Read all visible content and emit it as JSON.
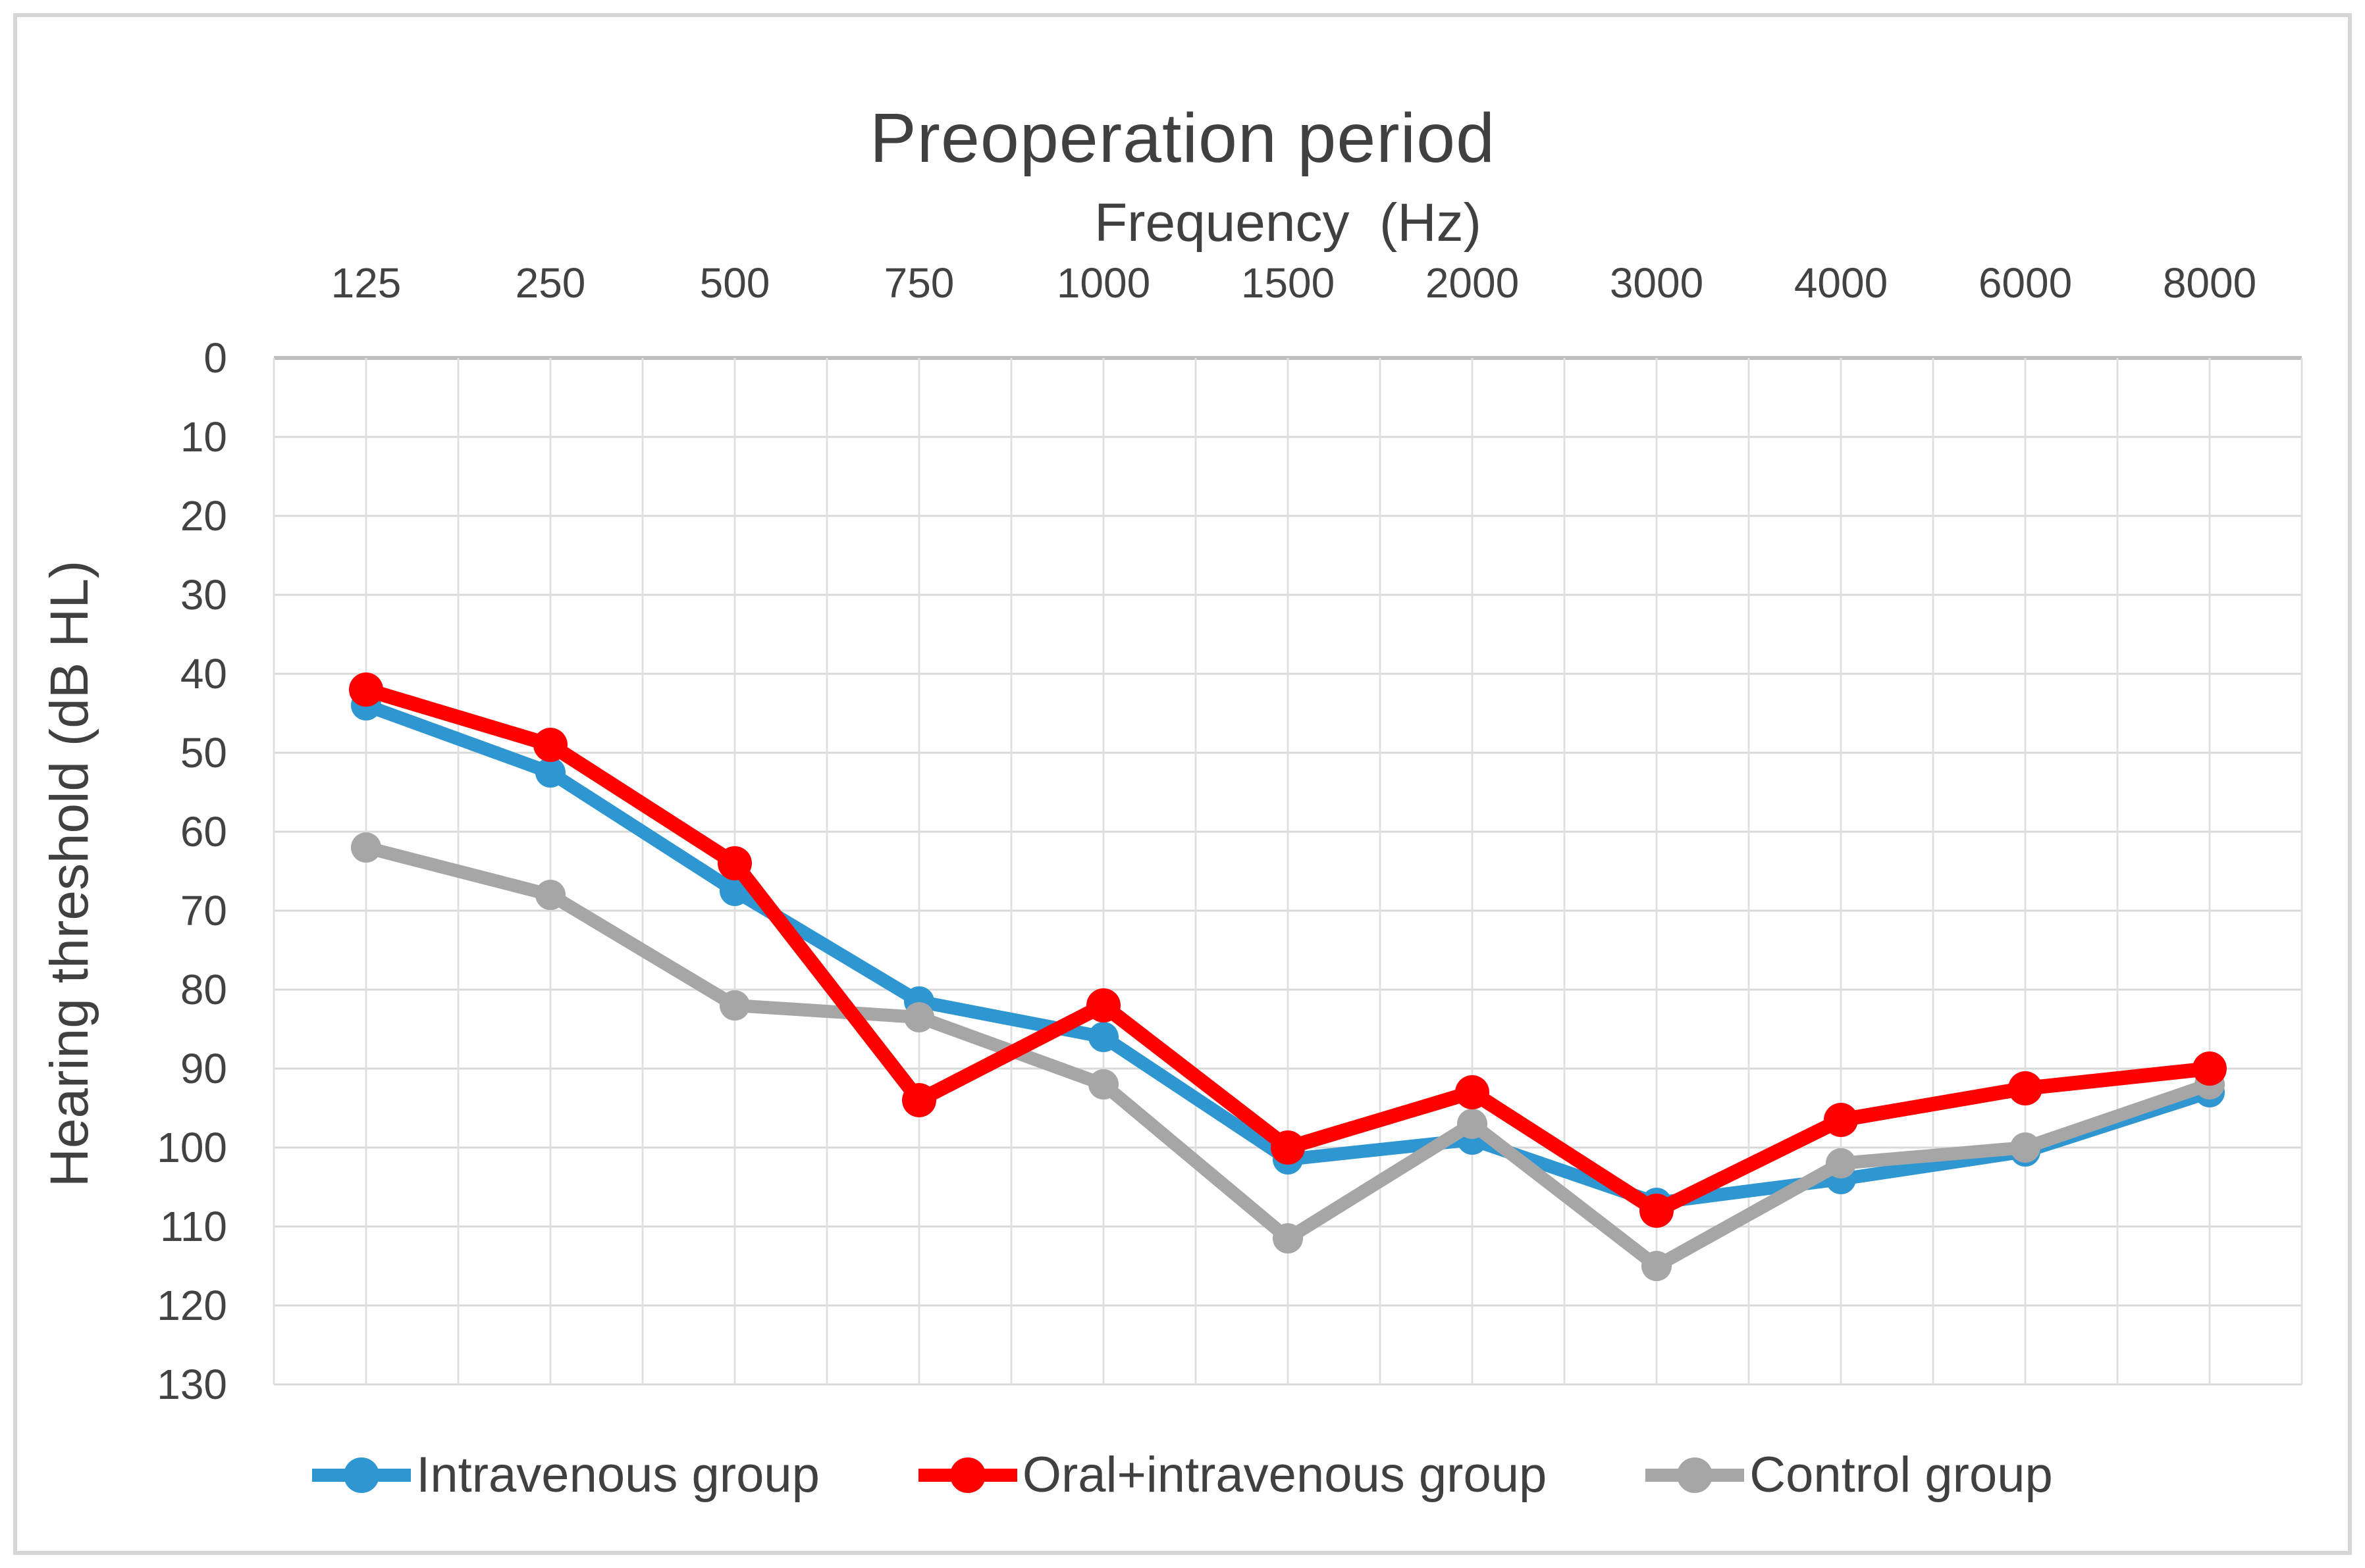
{
  "chart_data": {
    "type": "line",
    "title": "Preoperation period",
    "xlabel": "Frequency  (Hz)",
    "ylabel": "Hearing threshold (dB HL)",
    "categories": [
      "125",
      "250",
      "500",
      "750",
      "1000",
      "1500",
      "2000",
      "3000",
      "4000",
      "6000",
      "8000"
    ],
    "y_ticks": [
      0,
      10,
      20,
      30,
      40,
      50,
      60,
      70,
      80,
      90,
      100,
      110,
      120,
      130
    ],
    "ylim": [
      0,
      130
    ],
    "y_axis_inverted": true,
    "grid": true,
    "legend_position": "bottom",
    "series": [
      {
        "name": "Intravenous group",
        "color": "#2E96D1",
        "values": [
          44,
          52.5,
          67.5,
          81.5,
          86,
          101.5,
          99,
          107,
          104,
          100.5,
          93
        ]
      },
      {
        "name": "Oral+intravenous group",
        "color": "#FE0000",
        "values": [
          42,
          49,
          64,
          94,
          82,
          100,
          93,
          108,
          96.5,
          92.5,
          90
        ]
      },
      {
        "name": "Control group",
        "color": "#A6A6A6",
        "values": [
          62,
          68,
          82,
          83.5,
          92,
          111.5,
          97,
          115,
          102,
          100,
          92
        ]
      }
    ]
  }
}
